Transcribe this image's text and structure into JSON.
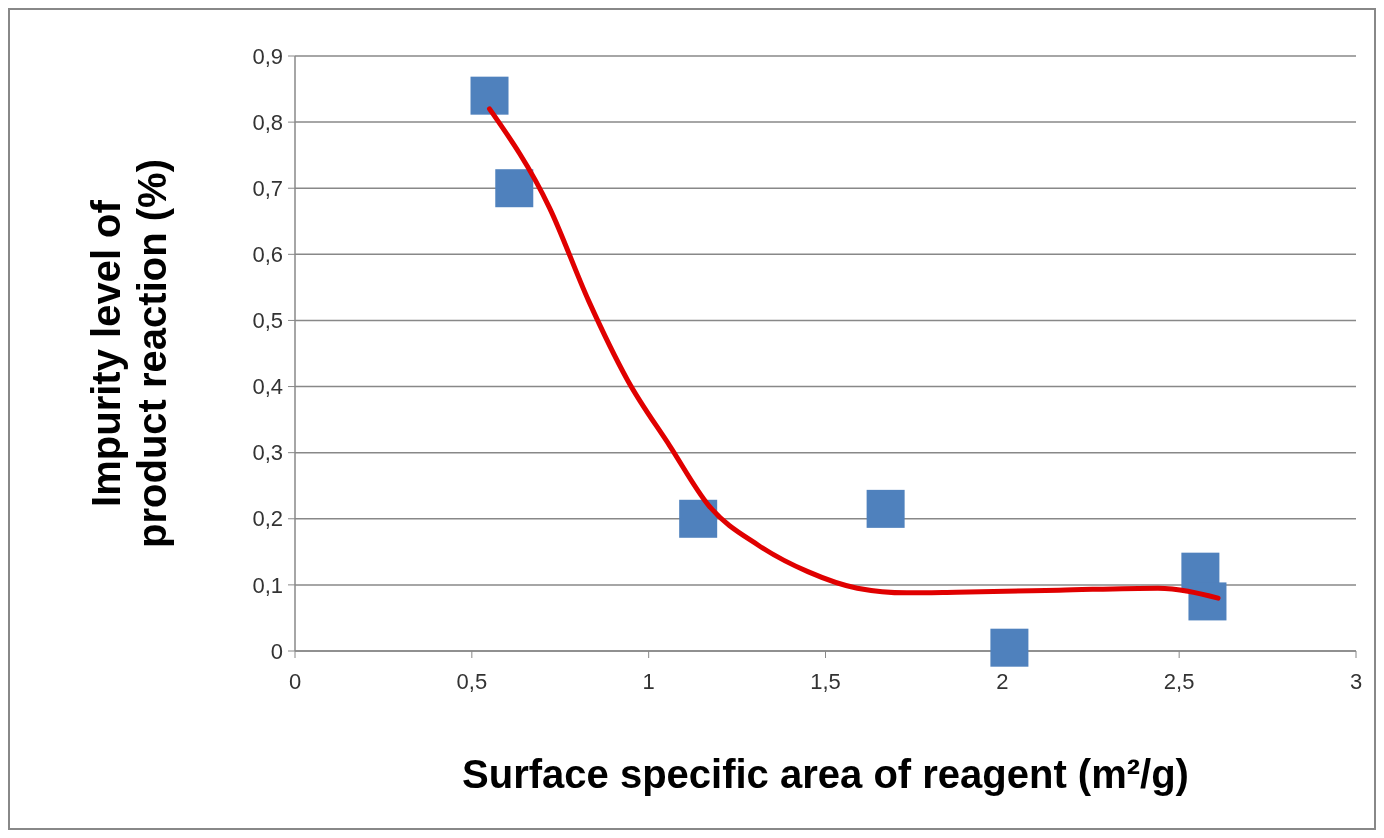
{
  "chart_data": {
    "type": "scatter",
    "xlabel": "Surface specific area of reagent (m²/g)",
    "ylabel": "Impurity level of product reaction (%)",
    "xlim": [
      0,
      3
    ],
    "xticks": [
      0,
      {
        "value": 0.5,
        "label": "0,5"
      },
      1,
      {
        "value": 1.5,
        "label": "1,5"
      },
      2,
      {
        "value": 2.5,
        "label": "2,5"
      },
      3
    ],
    "ylim": [
      0,
      0.9
    ],
    "yticks": [
      0,
      {
        "value": 0.1,
        "label": "0,1"
      },
      {
        "value": 0.2,
        "label": "0,2"
      },
      {
        "value": 0.3,
        "label": "0,3"
      },
      {
        "value": 0.4,
        "label": "0,4"
      },
      {
        "value": 0.5,
        "label": "0,5"
      },
      {
        "value": 0.6,
        "label": "0,6"
      },
      {
        "value": 0.7,
        "label": "0,7"
      },
      {
        "value": 0.8,
        "label": "0,8"
      },
      {
        "value": 0.9,
        "label": "0,9"
      }
    ],
    "grid": "y",
    "series": [
      {
        "marker": "square",
        "color": "#4f81bd",
        "x": [
          0.55,
          0.62,
          1.14,
          1.67,
          2.02,
          2.56,
          2.58
        ],
        "values": [
          0.84,
          0.7,
          0.2,
          0.215,
          0.005,
          0.12,
          0.075
        ]
      },
      {
        "type": "line",
        "marker": "none",
        "color": "#e00000",
        "x": [
          0.55,
          0.72,
          0.83,
          0.94,
          1.06,
          1.17,
          1.31,
          1.45,
          1.59,
          1.73,
          1.87,
          2.16,
          2.44,
          2.61
        ],
        "values": [
          0.82,
          0.67,
          0.53,
          0.41,
          0.31,
          0.22,
          0.16,
          0.12,
          0.095,
          0.088,
          0.089,
          0.092,
          0.095,
          0.08
        ]
      }
    ]
  }
}
